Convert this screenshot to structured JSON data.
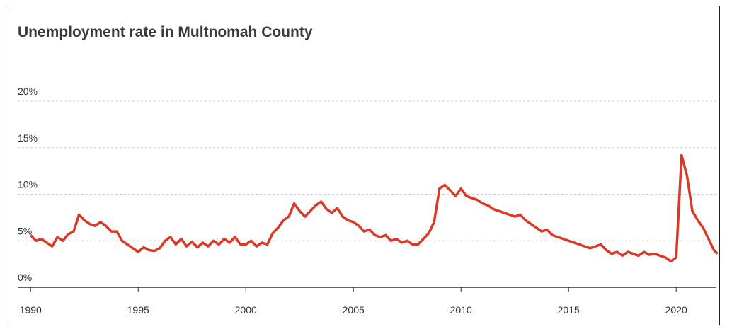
{
  "chart_data": {
    "type": "line",
    "title": "Unemployment rate in Multnomah County",
    "x": [
      1990,
      1990.25,
      1990.5,
      1990.75,
      1991,
      1991.25,
      1991.5,
      1991.75,
      1992,
      1992.25,
      1992.5,
      1992.75,
      1993,
      1993.25,
      1993.5,
      1993.75,
      1994,
      1994.25,
      1994.5,
      1994.75,
      1995,
      1995.25,
      1995.5,
      1995.75,
      1996,
      1996.25,
      1996.5,
      1996.75,
      1997,
      1997.25,
      1997.5,
      1997.75,
      1998,
      1998.25,
      1998.5,
      1998.75,
      1999,
      1999.25,
      1999.5,
      1999.75,
      2000,
      2000.25,
      2000.5,
      2000.75,
      2001,
      2001.25,
      2001.5,
      2001.75,
      2002,
      2002.25,
      2002.5,
      2002.75,
      2003,
      2003.25,
      2003.5,
      2003.75,
      2004,
      2004.25,
      2004.5,
      2004.75,
      2005,
      2005.25,
      2005.5,
      2005.75,
      2006,
      2006.25,
      2006.5,
      2006.75,
      2007,
      2007.25,
      2007.5,
      2007.75,
      2008,
      2008.25,
      2008.5,
      2008.75,
      2009,
      2009.25,
      2009.5,
      2009.75,
      2010,
      2010.25,
      2010.5,
      2010.75,
      2011,
      2011.25,
      2011.5,
      2011.75,
      2012,
      2012.25,
      2012.5,
      2012.75,
      2013,
      2013.25,
      2013.5,
      2013.75,
      2014,
      2014.25,
      2014.5,
      2014.75,
      2015,
      2015.25,
      2015.5,
      2015.75,
      2016,
      2016.25,
      2016.5,
      2016.75,
      2017,
      2017.25,
      2017.5,
      2017.75,
      2018,
      2018.25,
      2018.5,
      2018.75,
      2019,
      2019.25,
      2019.5,
      2019.75,
      2020,
      2020.25,
      2020.5,
      2020.75,
      2021,
      2021.25,
      2021.5,
      2021.75,
      2021.92
    ],
    "series": [
      {
        "name": "Unemployment rate",
        "color": "#d93a26",
        "values": [
          5.6,
          5.0,
          5.2,
          4.8,
          4.4,
          5.4,
          5.0,
          5.7,
          6.0,
          7.8,
          7.2,
          6.8,
          6.6,
          7.0,
          6.6,
          6.0,
          6.0,
          5.0,
          4.6,
          4.2,
          3.8,
          4.3,
          4.0,
          3.9,
          4.2,
          5.0,
          5.4,
          4.6,
          5.2,
          4.4,
          4.9,
          4.3,
          4.8,
          4.4,
          5.0,
          4.6,
          5.2,
          4.8,
          5.4,
          4.6,
          4.6,
          5.0,
          4.4,
          4.8,
          4.6,
          5.8,
          6.4,
          7.2,
          7.6,
          9.0,
          8.2,
          7.6,
          8.2,
          8.8,
          9.2,
          8.4,
          8.0,
          8.5,
          7.6,
          7.2,
          7.0,
          6.6,
          6.0,
          6.2,
          5.6,
          5.4,
          5.6,
          5.0,
          5.2,
          4.8,
          5.0,
          4.6,
          4.6,
          5.2,
          5.8,
          7.0,
          10.6,
          11.0,
          10.4,
          9.8,
          10.6,
          9.8,
          9.6,
          9.4,
          9.0,
          8.8,
          8.4,
          8.2,
          8.0,
          7.8,
          7.6,
          7.8,
          7.2,
          6.8,
          6.4,
          6.0,
          6.2,
          5.6,
          5.4,
          5.2,
          5.0,
          4.8,
          4.6,
          4.4,
          4.2,
          4.4,
          4.6,
          4.0,
          3.6,
          3.8,
          3.4,
          3.8,
          3.6,
          3.4,
          3.8,
          3.5,
          3.6,
          3.4,
          3.2,
          2.8,
          3.2,
          14.2,
          12.0,
          8.2,
          7.2,
          6.4,
          5.2,
          4.0,
          3.6
        ]
      }
    ],
    "xlim": [
      1989.4,
      2022.0
    ],
    "xticks": [
      1990,
      1995,
      2000,
      2005,
      2010,
      2015,
      2020
    ],
    "ylim": [
      0,
      20
    ],
    "yticks": [
      {
        "value": 0,
        "label": "0%"
      },
      {
        "value": 5,
        "label": "5%"
      },
      {
        "value": 10,
        "label": "10%"
      },
      {
        "value": 15,
        "label": "15%"
      },
      {
        "value": 20,
        "label": "20%"
      }
    ],
    "grid": true
  }
}
